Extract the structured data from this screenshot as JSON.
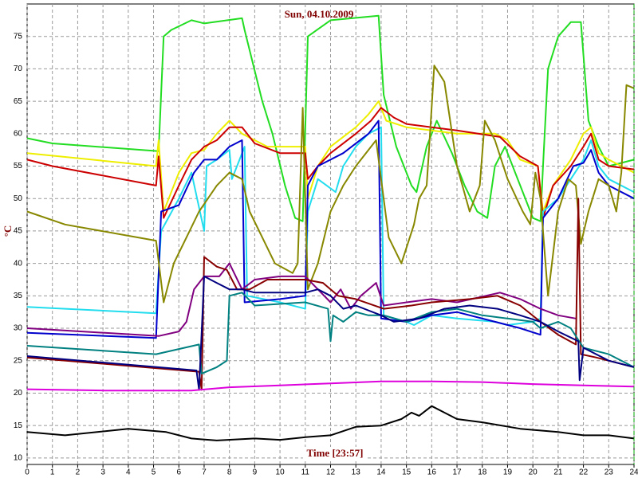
{
  "chart_data": {
    "type": "line",
    "title": "Sun, 04.10.2009",
    "xlabel": "Time [23:57]",
    "ylabel": "°C",
    "xlim": [
      0,
      24
    ],
    "xticks": [
      0,
      1,
      2,
      3,
      4,
      5,
      6,
      7,
      8,
      9,
      10,
      11,
      12,
      13,
      14,
      15,
      16,
      17,
      18,
      19,
      20,
      21,
      22,
      23,
      24
    ],
    "ylim": [
      9,
      80
    ],
    "yticks": [
      10,
      15,
      20,
      25,
      30,
      35,
      40,
      45,
      50,
      55,
      60,
      65,
      70,
      75
    ],
    "grid": true,
    "series": [
      {
        "color": "#22dd22",
        "x": [
          0,
          1,
          5.2,
          5.4,
          5.7,
          6.5,
          7,
          8.5,
          8.6,
          9.3,
          9.7,
          10.2,
          10.6,
          10.9,
          11.1,
          12,
          13.9,
          14.1,
          14.6,
          15.2,
          15.4,
          15.8,
          16.2,
          16.8,
          17.3,
          17.8,
          18.2,
          18.5,
          18.9,
          19.5,
          20,
          20.3,
          20.4,
          20.6,
          21,
          21.5,
          21.9,
          22.2,
          22.6,
          23,
          23.5,
          24
        ],
        "values": [
          59.3,
          58.5,
          57.3,
          75,
          76,
          77.5,
          77,
          77.8,
          76,
          65,
          60,
          52,
          47,
          46.5,
          75,
          77.5,
          78.2,
          66,
          58,
          52,
          51,
          58,
          62,
          57,
          52,
          48,
          47,
          55,
          58,
          52,
          47,
          46.5,
          55,
          70,
          75,
          77.2,
          77.2,
          62,
          58,
          55,
          55.5,
          56
        ]
      },
      {
        "color": "#eeee00",
        "x": [
          0,
          5.1,
          5.2,
          5.4,
          6,
          6.5,
          7,
          7.5,
          8,
          8.5,
          9.5,
          10.5,
          11,
          11.1,
          11.5,
          12,
          13,
          13.5,
          13.9,
          14.2,
          15,
          16,
          17,
          18.5,
          19,
          19.5,
          20.2,
          20.4,
          20.8,
          21.5,
          22,
          22.3,
          22.6,
          23,
          24
        ],
        "values": [
          57,
          55,
          59,
          48,
          54,
          57,
          57.5,
          60,
          62,
          60,
          58,
          58,
          58,
          50,
          55,
          58,
          61,
          63,
          65,
          62,
          61,
          60.5,
          60,
          60,
          59,
          56,
          55,
          48,
          52,
          56,
          60,
          61,
          57,
          56,
          54
        ]
      },
      {
        "color": "#cc0000",
        "x": [
          0,
          1,
          5.1,
          5.2,
          5.4,
          6,
          6.5,
          7,
          7.5,
          8,
          8.5,
          9,
          10,
          11,
          11.1,
          11.5,
          12,
          13,
          13.6,
          14,
          14.5,
          15,
          16,
          17,
          18.7,
          19.5,
          20.2,
          20.4,
          20.8,
          21.5,
          22,
          22.3,
          22.6,
          23,
          24
        ],
        "values": [
          56,
          55,
          52,
          56.5,
          47,
          52,
          56,
          58,
          59,
          61,
          61,
          58.5,
          57,
          57,
          53,
          55,
          57,
          60,
          62,
          64,
          62.5,
          61.5,
          61,
          60.5,
          59.5,
          56.5,
          55,
          47,
          52,
          55,
          58,
          60,
          56,
          55,
          54.5
        ]
      },
      {
        "color": "#22ddee",
        "x": [
          0,
          5.1,
          5.3,
          6,
          6.5,
          7,
          7.1,
          7.5,
          8,
          8.1,
          8.4,
          8.6,
          8.7,
          10,
          11,
          11.1,
          11.5,
          12.2,
          12.5,
          13,
          13.5,
          14,
          14.1,
          15,
          15.3,
          16,
          17,
          18.5,
          19,
          20,
          20.3,
          20.4,
          21,
          21.5,
          22,
          22.3,
          22.6,
          23,
          24
        ],
        "values": [
          33.3,
          32.3,
          45,
          50,
          54,
          45,
          55,
          56,
          57.5,
          53,
          56,
          58,
          35,
          34,
          33,
          48,
          53,
          51,
          55,
          58,
          60,
          61,
          32,
          31,
          30.5,
          32,
          31.5,
          31,
          30.5,
          31,
          31.5,
          48,
          50,
          53,
          56,
          59,
          55,
          53,
          51
        ]
      },
      {
        "color": "#0000cc",
        "x": [
          0,
          5.1,
          5.3,
          6,
          6.6,
          7,
          7.5,
          8,
          8.5,
          8.6,
          10,
          11,
          11.1,
          11.5,
          12.5,
          13.5,
          13.9,
          14,
          15,
          16,
          17,
          18.5,
          19.5,
          20.3,
          20.4,
          21,
          21.6,
          22,
          22.3,
          22.6,
          23,
          24
        ],
        "values": [
          29.3,
          28.5,
          48,
          49,
          54,
          56,
          56,
          58,
          59,
          34,
          34.5,
          35,
          52,
          55,
          57,
          60,
          62,
          31.5,
          31,
          32,
          32.5,
          31,
          30,
          29,
          47,
          50,
          55,
          55.5,
          57.5,
          54,
          52,
          50
        ]
      },
      {
        "color": "#888800",
        "x": [
          0,
          1.5,
          5.1,
          5.4,
          5.8,
          6.3,
          6.8,
          7.5,
          8,
          8.5,
          8.8,
          9.3,
          9.8,
          10.5,
          10.7,
          10.9,
          11.1,
          11.5,
          12,
          12.5,
          13,
          13.8,
          14.3,
          14.8,
          15.3,
          15.5,
          15.8,
          15.9,
          16.1,
          16.5,
          17,
          17.5,
          17.9,
          18.1,
          18.5,
          19,
          19.6,
          19.9,
          20.1,
          20.3,
          20.6,
          21,
          21.4,
          21.7,
          21.9,
          22.2,
          22.6,
          23,
          23.3,
          23.5,
          23.7,
          24
        ],
        "values": [
          48,
          46,
          43.5,
          34,
          40,
          44,
          48,
          52,
          54,
          53,
          48,
          44,
          40,
          38.5,
          40,
          64,
          36,
          40,
          48,
          52,
          55,
          59,
          44,
          40,
          46,
          50,
          52,
          58,
          70.5,
          68,
          55,
          48,
          52,
          62,
          59,
          53,
          48,
          46,
          54,
          50,
          35,
          48,
          53,
          52,
          43,
          48,
          53,
          52,
          48,
          54,
          67.5,
          67
        ]
      },
      {
        "color": "#800080",
        "x": [
          0,
          5.2,
          6,
          6.3,
          6.6,
          7,
          7.6,
          8,
          8.5,
          9,
          10,
          11,
          11.5,
          12,
          12.4,
          12.8,
          13.2,
          13.8,
          14.1,
          15,
          16,
          17,
          18.7,
          19.5,
          20.3,
          21,
          21.7
        ],
        "values": [
          30,
          28.8,
          29.5,
          31,
          36,
          38,
          38,
          40,
          36,
          37.5,
          38,
          38,
          36,
          34,
          36,
          33,
          35,
          37,
          33.5,
          34,
          34.5,
          34,
          35.5,
          34.5,
          33,
          32,
          31.5
        ]
      },
      {
        "color": "#880000",
        "x": [
          0,
          6.8,
          6.9,
          7,
          7.5,
          7.9,
          8.3,
          8.8,
          9.5,
          11,
          11.7,
          12.3,
          13,
          14.1,
          15.2,
          16,
          17.5,
          18.6,
          19.5,
          20.3,
          21,
          21.7,
          21.8,
          21.9,
          22.5,
          23.5,
          24
        ],
        "values": [
          25.5,
          23.3,
          20.5,
          41,
          39.5,
          39,
          36,
          36,
          37.5,
          37.5,
          37,
          35,
          34.5,
          33,
          33.5,
          34,
          34.5,
          35,
          33.5,
          31,
          29,
          27.5,
          50,
          26,
          25.5,
          24.5,
          24
        ]
      },
      {
        "color": "#008080",
        "x": [
          0,
          5.1,
          6.8,
          6.9,
          7.5,
          7.9,
          8,
          8.5,
          9,
          11,
          11.9,
          12,
          12.1,
          12.5,
          13,
          13.5,
          14.1,
          15,
          16,
          17,
          18,
          19,
          20,
          20.3,
          21,
          21.5,
          22,
          23,
          24
        ],
        "values": [
          27.3,
          26,
          27.5,
          23,
          24,
          25,
          35,
          35.5,
          33.5,
          34,
          33,
          28,
          32,
          31,
          32.5,
          32,
          32,
          31,
          32.5,
          33,
          32,
          31.5,
          31,
          30,
          31,
          30,
          27,
          26,
          24
        ]
      },
      {
        "color": "#000080",
        "x": [
          0,
          6.7,
          6.8,
          7,
          7.5,
          8,
          8.5,
          9,
          11,
          11.5,
          12,
          12.5,
          13,
          14,
          14.5,
          15.5,
          16.5,
          17.5,
          18.6,
          19.5,
          20.3,
          21,
          21.8,
          21.85,
          22,
          23,
          24
        ],
        "values": [
          25.7,
          23.5,
          20.5,
          38,
          37,
          36,
          36,
          35.5,
          35.5,
          36,
          35,
          33,
          33.5,
          32,
          31,
          31.5,
          33,
          33.5,
          33,
          32,
          31,
          29.5,
          28,
          22,
          27,
          25,
          24
        ]
      },
      {
        "color": "#dd00dd",
        "x": [
          0,
          3,
          6.5,
          8,
          10,
          12,
          14,
          16,
          18,
          20,
          22,
          24
        ],
        "values": [
          20.6,
          20.4,
          20.4,
          20.9,
          21.2,
          21.5,
          21.8,
          21.8,
          21.7,
          21.4,
          21.2,
          21
        ]
      },
      {
        "color": "#000000",
        "x": [
          0,
          1.5,
          4,
          5.5,
          6.5,
          7.5,
          9,
          10,
          11,
          12,
          13,
          14,
          14.8,
          15.2,
          15.5,
          16,
          16.5,
          17,
          18,
          19.5,
          21,
          22,
          23,
          24
        ],
        "values": [
          14,
          13.5,
          14.5,
          14,
          13,
          12.7,
          13,
          12.8,
          13.2,
          13.5,
          14.8,
          15,
          16,
          17,
          16.5,
          18,
          17,
          16,
          15.5,
          14.5,
          14,
          13.5,
          13.5,
          13
        ]
      }
    ]
  }
}
